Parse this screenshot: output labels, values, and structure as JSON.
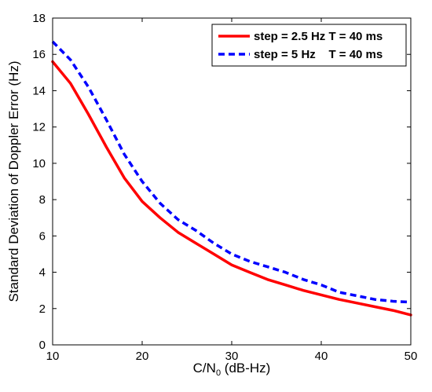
{
  "chart_data": {
    "type": "line",
    "xlabel": "C/N",
    "xlabel_sub": "0",
    "xlabel_unit": " (dB-Hz)",
    "ylabel": "Standard Deviation of Doppler Error (Hz)",
    "xlim": [
      10,
      50
    ],
    "ylim": [
      0,
      18
    ],
    "xticks": [
      10,
      20,
      30,
      40,
      50
    ],
    "yticks": [
      0,
      2,
      4,
      6,
      8,
      10,
      12,
      14,
      16,
      18
    ],
    "grid": false,
    "legend_position": "top-right",
    "series": [
      {
        "name": "step = 2.5 Hz T = 40 ms",
        "color": "#ff0000",
        "style": "solid",
        "x": [
          10,
          12,
          14,
          16,
          18,
          20,
          22,
          24,
          26,
          28,
          30,
          32,
          34,
          36,
          38,
          40,
          42,
          44,
          46,
          48,
          50
        ],
        "y": [
          15.6,
          14.4,
          12.7,
          10.9,
          9.2,
          7.9,
          7.0,
          6.2,
          5.6,
          5.0,
          4.4,
          4.0,
          3.6,
          3.3,
          3.0,
          2.75,
          2.5,
          2.3,
          2.1,
          1.9,
          1.65
        ]
      },
      {
        "name": "step = 5 Hz    T = 40 ms",
        "color": "#0000ff",
        "style": "dashed",
        "x": [
          10,
          12,
          14,
          16,
          18,
          20,
          22,
          24,
          26,
          28,
          30,
          32,
          34,
          36,
          38,
          40,
          42,
          44,
          46,
          48,
          50
        ],
        "y": [
          16.7,
          15.7,
          14.2,
          12.4,
          10.5,
          9.0,
          7.8,
          6.9,
          6.3,
          5.6,
          5.0,
          4.6,
          4.3,
          4.0,
          3.6,
          3.3,
          2.9,
          2.7,
          2.5,
          2.4,
          2.35
        ]
      }
    ]
  }
}
